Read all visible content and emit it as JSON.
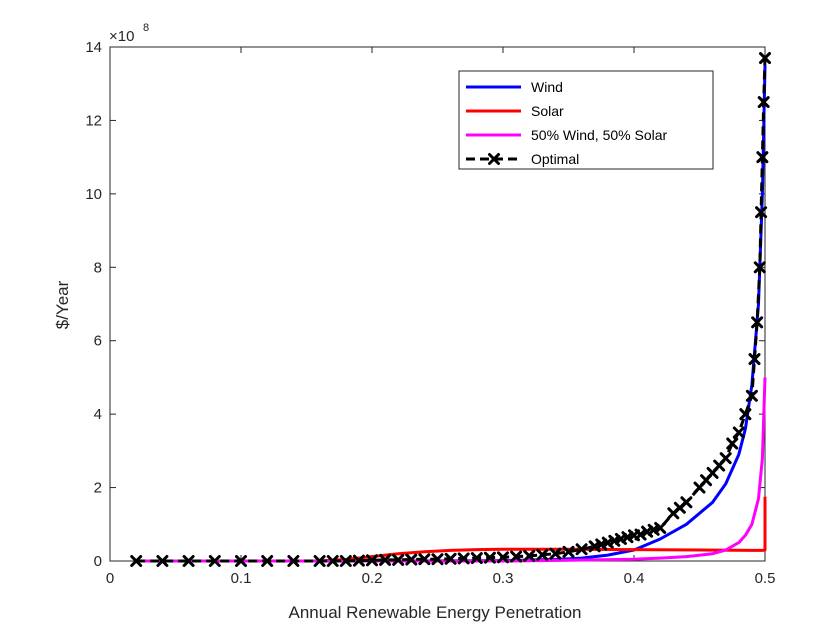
{
  "chart_data": {
    "type": "line",
    "xlabel": "Annual Renewable Energy Penetration",
    "ylabel": "$/Year",
    "exponent_label": "×10",
    "exponent_power": "8",
    "xlim": [
      0,
      0.5
    ],
    "ylim": [
      0,
      14
    ],
    "y_scale_multiplier": 100000000,
    "xticks": [
      0,
      0.1,
      0.2,
      0.3,
      0.4,
      0.5
    ],
    "xtick_labels": [
      "0",
      "0.1",
      "0.2",
      "0.3",
      "0.4",
      "0.5"
    ],
    "yticks": [
      0,
      2,
      4,
      6,
      8,
      10,
      12,
      14
    ],
    "ytick_labels": [
      "0",
      "2",
      "4",
      "6",
      "8",
      "10",
      "12",
      "14"
    ],
    "grid": false,
    "legend_position": "top-right",
    "series": [
      {
        "name": "Wind",
        "color": "#0000ff",
        "style": "solid",
        "x": [
          0.02,
          0.1,
          0.2,
          0.3,
          0.34,
          0.36,
          0.38,
          0.4,
          0.42,
          0.44,
          0.46,
          0.47,
          0.48,
          0.485,
          0.49,
          0.495,
          0.498,
          0.5
        ],
        "y": [
          0.0,
          0.0,
          0.0,
          0.01,
          0.04,
          0.08,
          0.16,
          0.3,
          0.6,
          1.0,
          1.6,
          2.1,
          2.9,
          3.6,
          4.8,
          7.0,
          10.0,
          13.5
        ]
      },
      {
        "name": "Solar",
        "color": "#ff0000",
        "style": "solid",
        "x": [
          0.02,
          0.1,
          0.16,
          0.18,
          0.2,
          0.22,
          0.24,
          0.26,
          0.28,
          0.3,
          0.35,
          0.4,
          0.45,
          0.49,
          0.498,
          0.5,
          0.5
        ],
        "y": [
          0.0,
          0.0,
          0.0,
          0.04,
          0.12,
          0.2,
          0.25,
          0.29,
          0.31,
          0.32,
          0.32,
          0.31,
          0.3,
          0.29,
          0.29,
          0.3,
          1.75
        ]
      },
      {
        "name": "50% Wind, 50% Solar",
        "color": "#ff00ff",
        "style": "solid",
        "x": [
          0.02,
          0.2,
          0.3,
          0.35,
          0.4,
          0.42,
          0.44,
          0.46,
          0.47,
          0.48,
          0.485,
          0.49,
          0.495,
          0.498,
          0.5
        ],
        "y": [
          0.0,
          0.0,
          0.0,
          0.02,
          0.05,
          0.08,
          0.12,
          0.2,
          0.3,
          0.5,
          0.7,
          1.0,
          1.7,
          2.8,
          5.0
        ]
      },
      {
        "name": "Optimal",
        "color": "#000000",
        "style": "dashed",
        "marker": "x",
        "x": [
          0.02,
          0.04,
          0.06,
          0.08,
          0.1,
          0.12,
          0.14,
          0.16,
          0.17,
          0.18,
          0.19,
          0.2,
          0.21,
          0.22,
          0.23,
          0.24,
          0.25,
          0.26,
          0.27,
          0.28,
          0.29,
          0.3,
          0.31,
          0.32,
          0.33,
          0.34,
          0.35,
          0.36,
          0.37,
          0.375,
          0.38,
          0.385,
          0.39,
          0.395,
          0.4,
          0.405,
          0.41,
          0.415,
          0.42,
          0.43,
          0.435,
          0.44,
          0.45,
          0.455,
          0.46,
          0.465,
          0.47,
          0.475,
          0.48,
          0.485,
          0.49,
          0.492,
          0.494,
          0.496,
          0.497,
          0.498,
          0.499,
          0.5
        ],
        "y": [
          0.0,
          0.0,
          0.0,
          0.0,
          0.0,
          0.0,
          0.0,
          0.0,
          0.0,
          0.0,
          0.01,
          0.02,
          0.03,
          0.03,
          0.04,
          0.05,
          0.05,
          0.06,
          0.07,
          0.08,
          0.09,
          0.1,
          0.12,
          0.14,
          0.17,
          0.2,
          0.25,
          0.32,
          0.4,
          0.45,
          0.5,
          0.55,
          0.6,
          0.65,
          0.7,
          0.72,
          0.8,
          0.85,
          0.9,
          1.3,
          1.45,
          1.6,
          2.0,
          2.2,
          2.4,
          2.6,
          2.8,
          3.2,
          3.5,
          4.0,
          4.5,
          5.5,
          6.5,
          8.0,
          9.5,
          11.0,
          12.5,
          13.7
        ]
      }
    ]
  }
}
